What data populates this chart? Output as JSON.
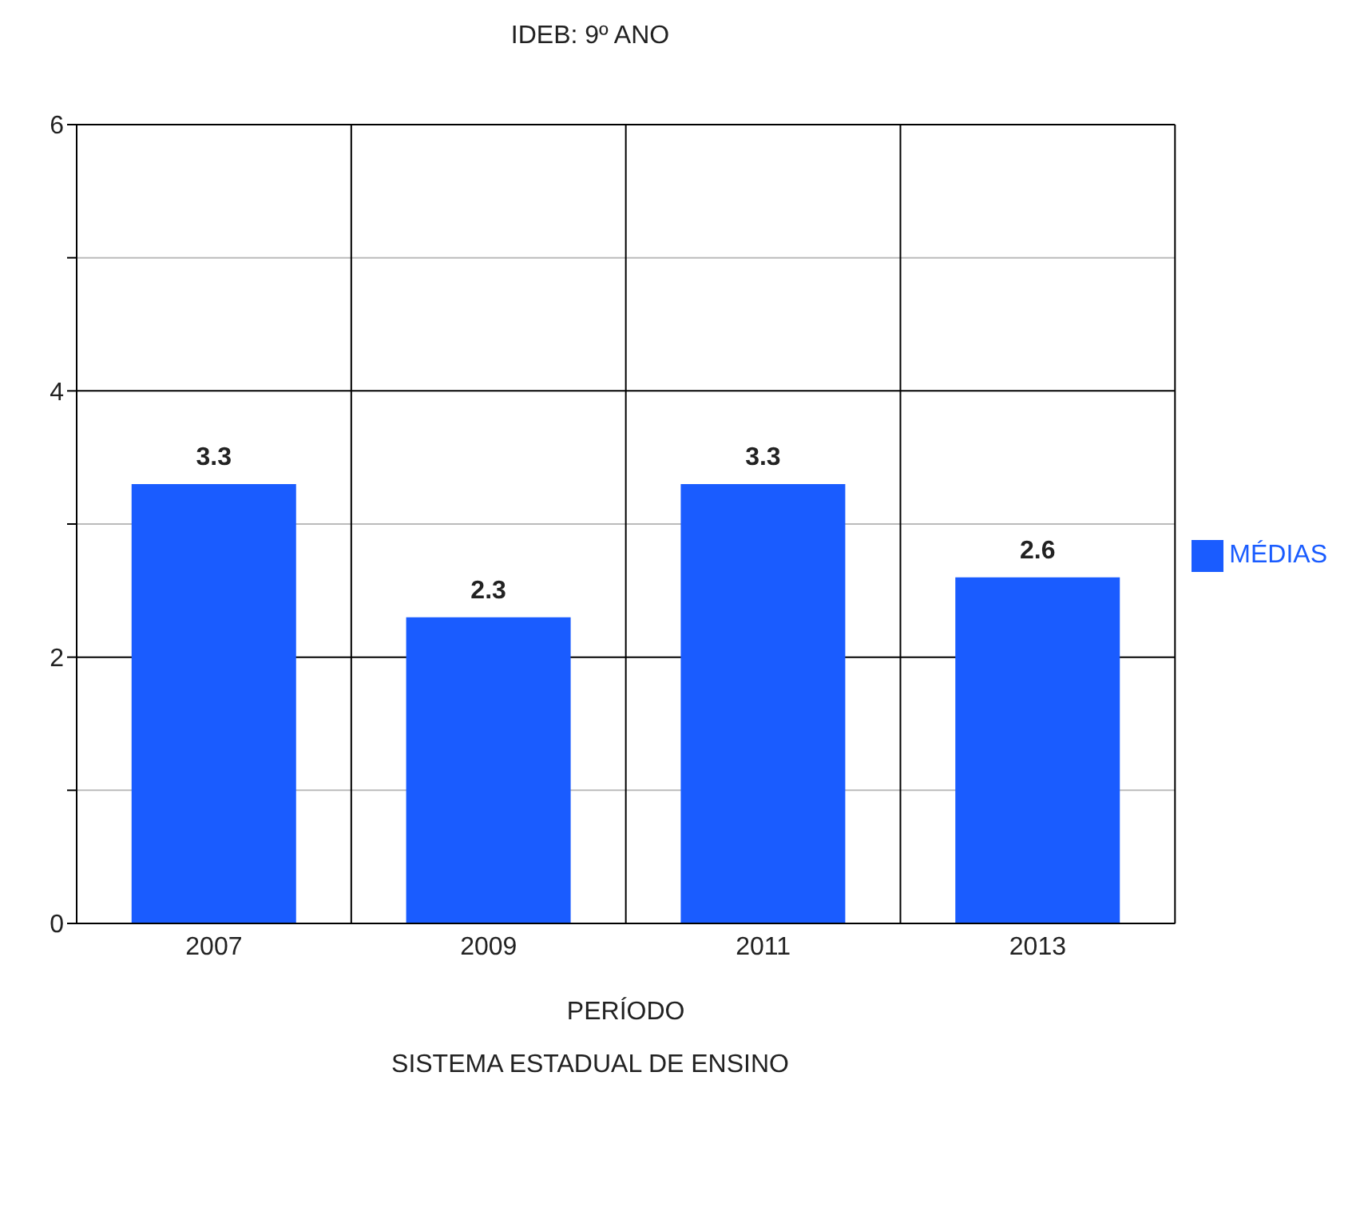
{
  "chart_data": {
    "type": "bar",
    "title": "IDEB: 9º ANO",
    "xlabel": "PERÍODO",
    "annotations": [
      "SISTEMA ESTADUAL DE ENSINO"
    ],
    "categories": [
      "2007",
      "2009",
      "2011",
      "2013"
    ],
    "series": [
      {
        "name": "MÉDIAS",
        "color": "#1a5cff",
        "values": [
          3.3,
          2.3,
          3.3,
          2.6
        ]
      }
    ],
    "ylim": [
      0,
      6
    ],
    "yticks": [
      0,
      {
        "value": 1,
        "label": null
      },
      2,
      {
        "value": 3,
        "label": null
      },
      4,
      {
        "value": 5,
        "label": null
      },
      6
    ],
    "grid": true,
    "legend": "right",
    "data_labels": true
  }
}
